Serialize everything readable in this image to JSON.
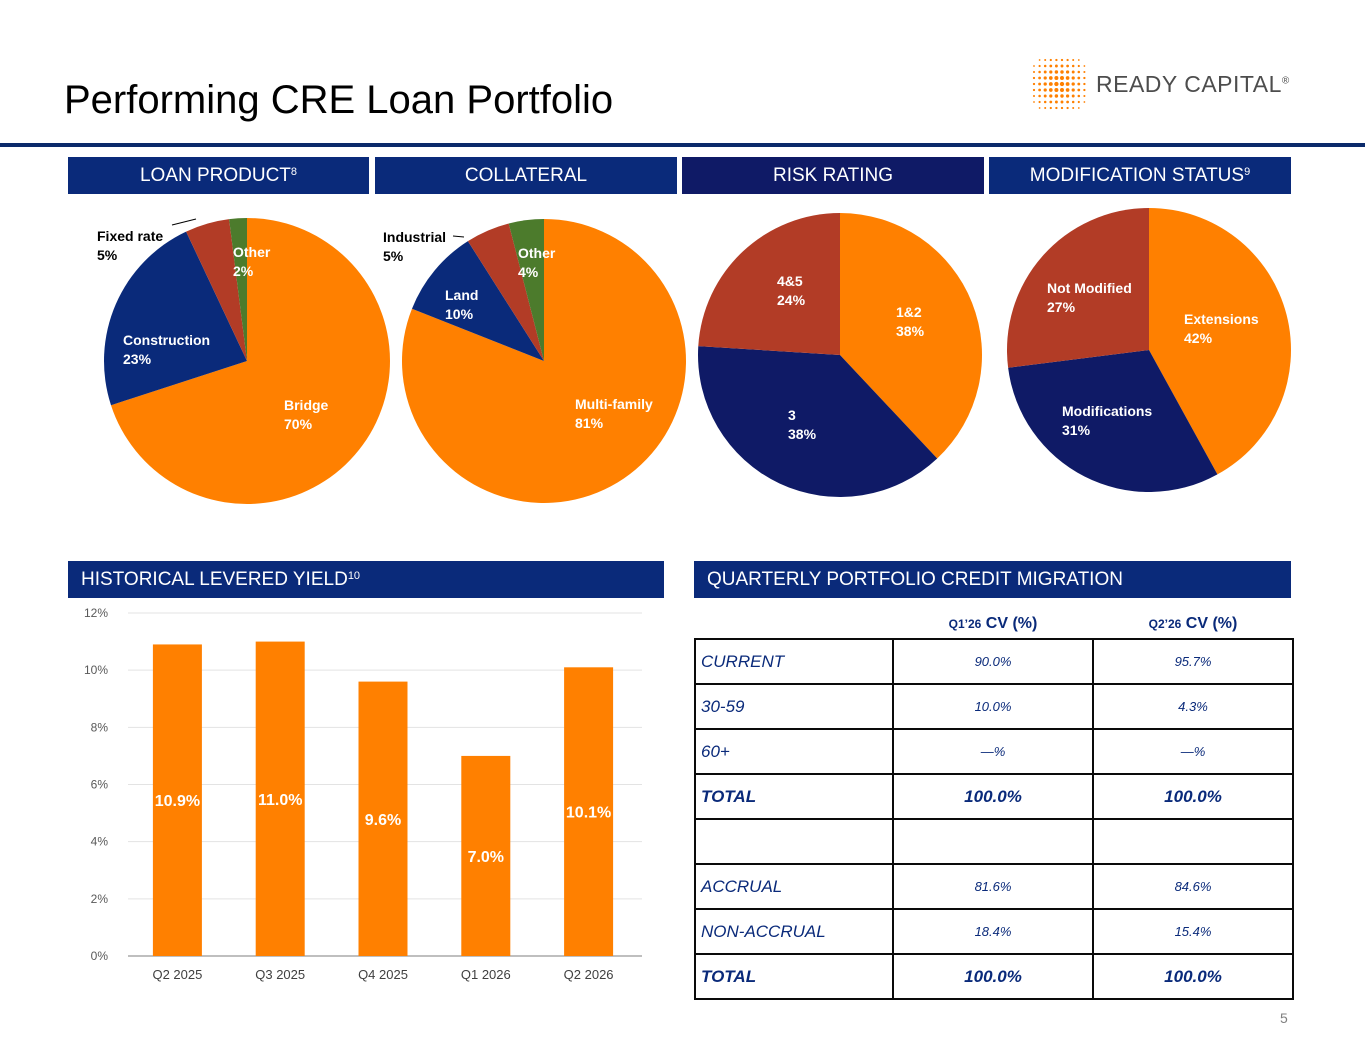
{
  "title": "Performing CRE Loan Portfolio",
  "logo": {
    "text": "READY CAPITAL",
    "mark": "®"
  },
  "page_number": "5",
  "colors": {
    "orange": "#ff8000",
    "navy": "#0a2a7a",
    "dark_navy": "#0f1a66",
    "red": "#b23c26",
    "green": "#4c7b2c"
  },
  "headers": {
    "loan_product": {
      "text": "LOAN PRODUCT",
      "sup": "8"
    },
    "collateral": {
      "text": "COLLATERAL",
      "sup": ""
    },
    "risk_rating": {
      "text": "RISK RATING",
      "sup": ""
    },
    "modification": {
      "text": "MODIFICATION STATUS",
      "sup": "9"
    },
    "yield": {
      "text": "HISTORICAL LEVERED YIELD",
      "sup": "10"
    },
    "migration": {
      "text": "QUARTERLY PORTFOLIO CREDIT MIGRATION",
      "sup": ""
    }
  },
  "chart_data": [
    {
      "type": "pie",
      "slices": [
        {
          "label": "Bridge",
          "value": 70,
          "display": "70%",
          "color": "#ff8000"
        },
        {
          "label": "Construction",
          "value": 23,
          "display": "23%",
          "color": "#0a2a7a"
        },
        {
          "label": "Fixed rate",
          "value": 5,
          "display": "5%",
          "color": "#b23c26"
        },
        {
          "label": "Other",
          "value": 2,
          "display": "2%",
          "color": "#4c7b2c"
        }
      ]
    },
    {
      "type": "pie",
      "slices": [
        {
          "label": "Multi-family",
          "value": 81,
          "display": "81%",
          "color": "#ff8000"
        },
        {
          "label": "Land",
          "value": 10,
          "display": "10%",
          "color": "#0a2a7a"
        },
        {
          "label": "Industrial",
          "value": 5,
          "display": "5%",
          "color": "#b23c26"
        },
        {
          "label": "Other",
          "value": 4,
          "display": "4%",
          "color": "#4c7b2c"
        }
      ]
    },
    {
      "type": "pie",
      "slices": [
        {
          "label": "1&2",
          "value": 38,
          "display": "38%",
          "color": "#ff8000"
        },
        {
          "label": "3",
          "value": 38,
          "display": "38%",
          "color": "#0f1a66"
        },
        {
          "label": "4&5",
          "value": 24,
          "display": "24%",
          "color": "#b23c26"
        }
      ]
    },
    {
      "type": "pie",
      "slices": [
        {
          "label": "Extensions",
          "value": 42,
          "display": "42%",
          "color": "#ff8000"
        },
        {
          "label": "Modifications",
          "value": 31,
          "display": "31%",
          "color": "#0f1a66"
        },
        {
          "label": "Not Modified",
          "value": 27,
          "display": "27%",
          "color": "#b23c26"
        }
      ]
    },
    {
      "type": "bar",
      "categories": [
        "Q2 2025",
        "Q3 2025",
        "Q4 2025",
        "Q1 2026",
        "Q2 2026"
      ],
      "values": [
        10.9,
        11.0,
        9.6,
        7.0,
        10.1
      ],
      "data_labels": [
        "10.9%",
        "11.0%",
        "9.6%",
        "7.0%",
        "10.1%"
      ],
      "yticks": [
        "0%",
        "2%",
        "4%",
        "6%",
        "8%",
        "10%",
        "12%"
      ],
      "ylim": [
        0,
        12
      ],
      "grid": true,
      "color": "#ff8000"
    },
    {
      "type": "table",
      "columns": [
        {
          "prefix": "Q1’26",
          "suffix": " CV (%)"
        },
        {
          "prefix": "Q2’26",
          "suffix": " CV (%)"
        }
      ],
      "rows": [
        {
          "label": "CURRENT",
          "values": [
            "90.0%",
            "95.7%"
          ],
          "total": false
        },
        {
          "label": "30-59",
          "values": [
            "10.0%",
            "4.3%"
          ],
          "total": false
        },
        {
          "label": "60+",
          "values": [
            "—%",
            "—%"
          ],
          "total": false
        },
        {
          "label": "TOTAL",
          "values": [
            "100.0%",
            "100.0%"
          ],
          "total": true
        },
        {
          "label": "",
          "values": [
            "",
            ""
          ],
          "total": false
        },
        {
          "label": "ACCRUAL",
          "values": [
            "81.6%",
            "84.6%"
          ],
          "total": false
        },
        {
          "label": "NON-ACCRUAL",
          "values": [
            "18.4%",
            "15.4%"
          ],
          "total": false
        },
        {
          "label": "TOTAL",
          "values": [
            "100.0%",
            "100.0%"
          ],
          "total": true
        }
      ]
    }
  ]
}
